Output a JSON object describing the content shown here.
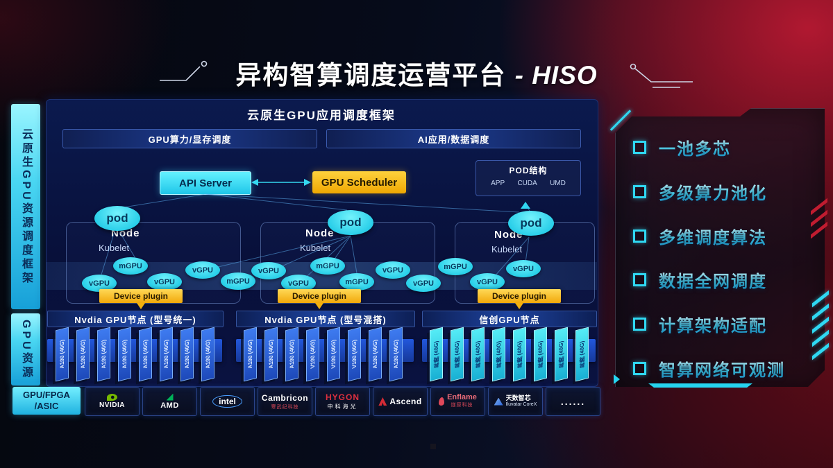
{
  "title": {
    "prefix": "异构智算调度运营平台",
    "suffix": "- HISO"
  },
  "sidebar": {
    "top_label": "云原生GPU资源调度框架",
    "bottom_label": "GPU资源"
  },
  "framework": {
    "header": "云原生GPU应用调度框架",
    "lanes": [
      "GPU算力/显存调度",
      "AI应用/数据调度"
    ],
    "api_server": "API Server",
    "gpu_scheduler": "GPU Scheduler",
    "pod_box": {
      "title": "POD结构",
      "items": [
        "APP",
        "CUDA",
        "UMD"
      ]
    },
    "nodes": [
      {
        "pod": "pod",
        "label": "Node",
        "agent": "Kubelet",
        "plugin": "Device plugin"
      },
      {
        "pod": "pod",
        "label": "Node",
        "agent": "Kubelet",
        "plugin": "Device plugin"
      },
      {
        "pod": "pod",
        "label": "Node",
        "agent": "Kubelet",
        "plugin": "Device plugin"
      }
    ],
    "gpu_ellipses": [
      "vGPU",
      "mGPU",
      "vGPU",
      "vGPU",
      "mGPU",
      "vGPU",
      "vGPU",
      "mGPU",
      "mGPU",
      "vGPU",
      "vGPU",
      "mGPU",
      "vGPU",
      "vGPU"
    ],
    "clusters": [
      {
        "label": "Nvdia GPU节点 (型号统一)",
        "cards": [
          "A100 (40G)",
          "A100 (40G)",
          "A100 (40G)",
          "A100 (40G)",
          "A100 (40G)",
          "A100 (40G)",
          "A100 (40G)",
          "A100 (40G)"
        ]
      },
      {
        "label": "Nvdia GPU节点 (型号混搭)",
        "cards": [
          "A100 (40G)",
          "A100 (40G)",
          "A100 (40G)",
          "V100 (40G)",
          "V100 (40G)",
          "V100 (40G)",
          "A100 (40G)",
          "A100 (40G)"
        ]
      },
      {
        "label": "信创GPU节点",
        "cards": [
          "昇腾 (40G)",
          "昇腾 (40G)",
          "昇腾 (40G)",
          "昇腾 (40G)",
          "昇腾 (40G)",
          "昇腾 (40G)",
          "昇腾 (40G)",
          "昇腾 (40G)"
        ]
      }
    ]
  },
  "hardware": {
    "label_line1": "GPU/FPGA",
    "label_line2": "/ASIC",
    "vendors": [
      {
        "name": "NVIDIA"
      },
      {
        "name": "AMD"
      },
      {
        "name": "intel"
      },
      {
        "name": "Cambricon",
        "sub": "寒武纪科技"
      },
      {
        "name": "HYGON",
        "sub": "中科海光"
      },
      {
        "name": "Ascend"
      },
      {
        "name": "Enflame",
        "sub": "燧原科技"
      },
      {
        "name": "天数智芯",
        "sub": "Iluvatar CoreX"
      },
      {
        "name": "......"
      }
    ]
  },
  "features": [
    "一池多芯",
    "多级算力池化",
    "多维调度算法",
    "数据全网调度",
    "计算架构适配",
    "智算网络可观测"
  ],
  "colors": {
    "accent_cyan": "#2fd8f2",
    "accent_yellow": "#f2b00e",
    "panel_blue": "#0b1a4e",
    "card_blue": "#2e63d8",
    "background_red": "#8c1226",
    "nvidia_green": "#76b900",
    "amd_green": "#00b259",
    "intel_blue": "#4a9eff",
    "brand_red": "#d42b35"
  }
}
